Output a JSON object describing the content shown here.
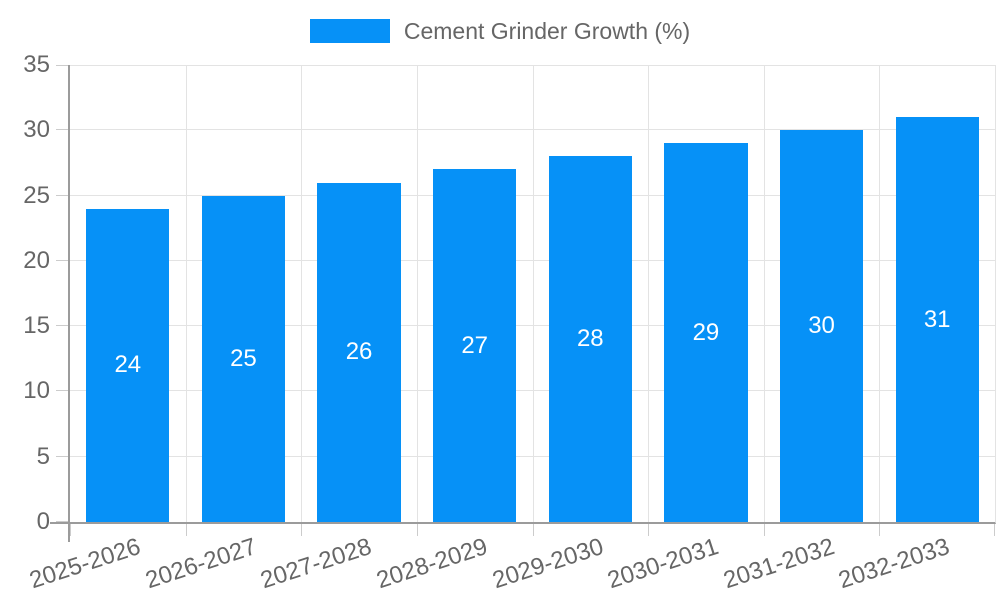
{
  "legend": {
    "label": "Cement Grinder Growth (%)"
  },
  "chart_data": {
    "type": "bar",
    "title": "Cement Grinder Growth (%)",
    "categories": [
      "2025-2026",
      "2026-2027",
      "2027-2028",
      "2028-2029",
      "2029-2030",
      "2030-2031",
      "2031-2032",
      "2032-2033"
    ],
    "values": [
      24,
      25,
      26,
      27,
      28,
      29,
      30,
      31
    ],
    "xlabel": "",
    "ylabel": "",
    "ylim": [
      0,
      35
    ],
    "ytick_step": 5,
    "ytick_labels": [
      "0",
      "5",
      "10",
      "15",
      "20",
      "25",
      "30",
      "35"
    ],
    "grid": true,
    "legend_position": "top",
    "bar_value_labels_inside": true,
    "colors": {
      "bar": "#0691f7",
      "bar_label": "#ffffff",
      "axis_text": "#666666",
      "grid_line": "#e3e3e3",
      "axis_line": "#9b9b9b"
    }
  }
}
